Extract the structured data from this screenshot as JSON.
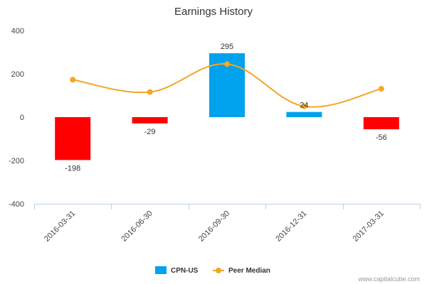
{
  "chart_data": {
    "type": "bar",
    "title": "Earnings History",
    "categories": [
      "2016-03-31",
      "2016-06-30",
      "2016-09-30",
      "2016-12-31",
      "2017-03-31"
    ],
    "series": [
      {
        "name": "CPN-US",
        "type": "bar",
        "values": [
          -198,
          -29,
          295,
          24,
          -56
        ],
        "colors": [
          "#ff0000",
          "#ff0000",
          "#00a2ed",
          "#00a2ed",
          "#ff0000"
        ]
      },
      {
        "name": "Peer Median",
        "type": "line",
        "values": [
          173,
          116,
          245,
          50,
          131
        ],
        "color": "#f5a623"
      }
    ],
    "data_labels": [
      "-198",
      "-29",
      "295",
      "24",
      "-56"
    ],
    "ylim": [
      -400,
      400
    ],
    "yticks": [
      -400,
      -200,
      0,
      200,
      400
    ],
    "ytick_labels": [
      "-400",
      "-200",
      "0",
      "200",
      "400"
    ],
    "xlabel": "",
    "ylabel": "",
    "grid": false,
    "legend_position": "bottom-center"
  },
  "credit": "www.capitalcube.com"
}
